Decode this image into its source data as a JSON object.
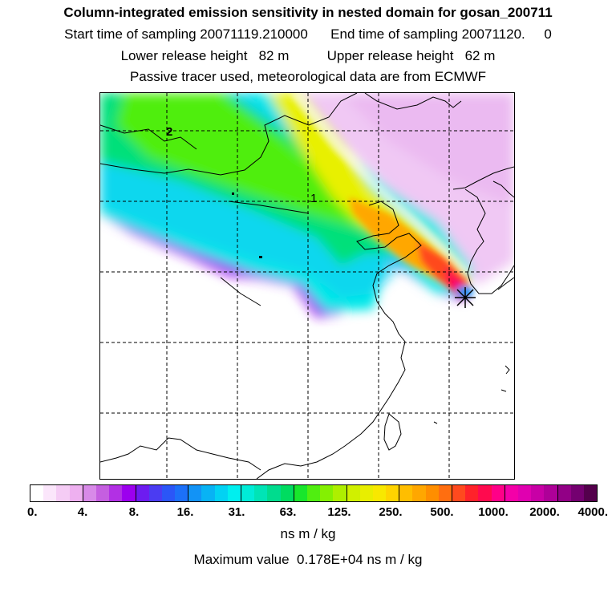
{
  "header": {
    "title": "Column-integrated emission sensitivity in nested domain for gosan_200711",
    "sampling": "Start time of sampling 20071119.210000      End time of sampling 20071120.     0",
    "release": "Lower release height   82 m          Upper release height   62 m",
    "tracer": "Passive tracer used, meteorological data are from ECMWF"
  },
  "map": {
    "markers": [
      {
        "label": "2"
      },
      {
        "label": "1"
      }
    ],
    "receptor": "star-icon"
  },
  "colorbar": {
    "ticks": [
      "0.",
      "4.",
      "8.",
      "16.",
      "31.",
      "63.",
      "125.",
      "250.",
      "500.",
      "1000.",
      "2000.",
      "4000."
    ],
    "colors": [
      "#ffffff",
      "#fbe6fb",
      "#f5ccf5",
      "#eeb0f0",
      "#d88ae8",
      "#c55fe0",
      "#b230e4",
      "#9c00ee",
      "#6d1cf0",
      "#4b3cf2",
      "#2b56f7",
      "#1c70f8",
      "#1293f6",
      "#08b3f4",
      "#02d2f3",
      "#00efef",
      "#00ecd8",
      "#00e4b6",
      "#00dc8e",
      "#00dc60",
      "#18e62c",
      "#50ee10",
      "#84f002",
      "#aeef00",
      "#d0f000",
      "#e8ee00",
      "#f8e800",
      "#ffd400",
      "#ffbe00",
      "#ffa700",
      "#ff8e00",
      "#ff6e10",
      "#ff4a1e",
      "#ff222a",
      "#ff0a4e",
      "#ff0088",
      "#f400a8",
      "#e000b0",
      "#c800a6",
      "#ae0098",
      "#920086",
      "#740070",
      "#54004c"
    ],
    "units": "ns m / kg",
    "max_label": "Maximum value  0.178E+04 ns m / kg"
  }
}
